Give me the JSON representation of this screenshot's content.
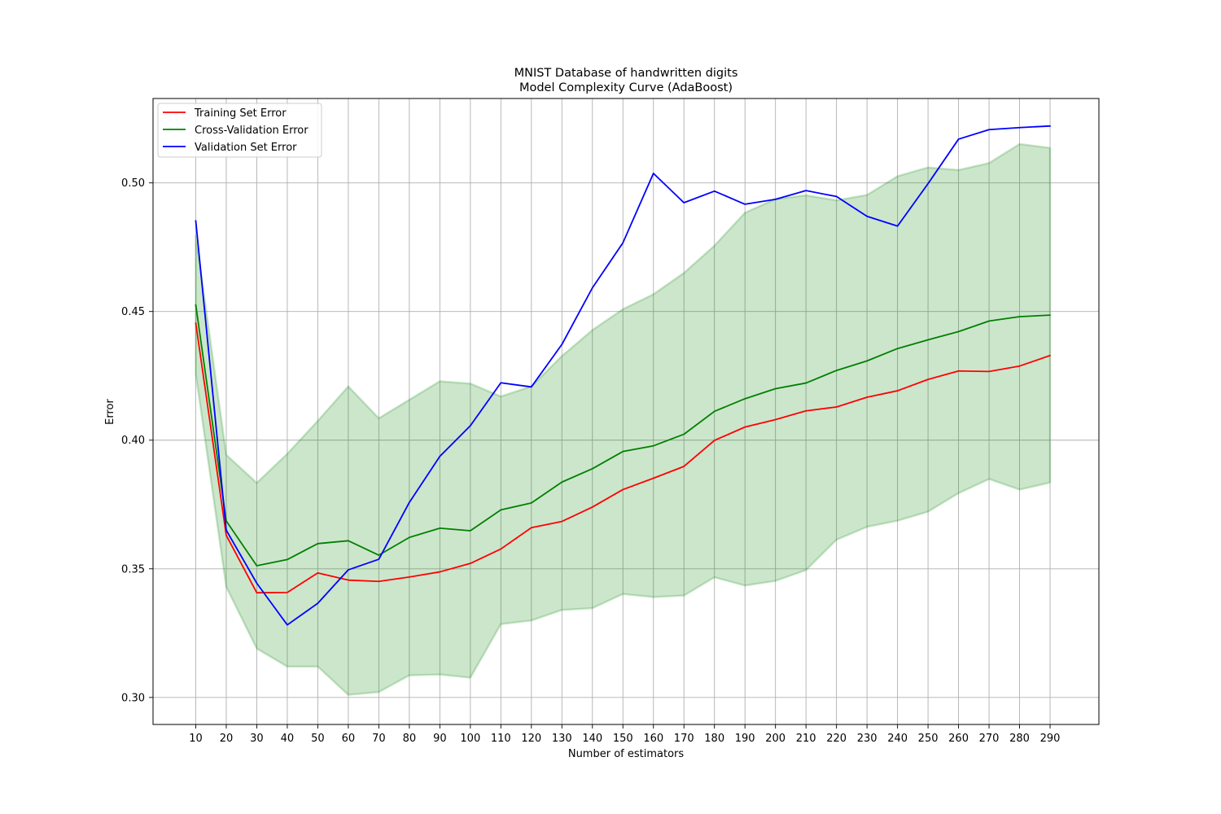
{
  "chart_data": {
    "type": "line",
    "title": "MNIST Database of handwritten digits",
    "subtitle": "Model Complexity Curve (AdaBoost)",
    "xlabel": "Number of estimators",
    "ylabel": "Error",
    "xlim": [
      -4.0,
      306.0
    ],
    "ylim": [
      0.2895,
      0.5328
    ],
    "grid": true,
    "legend_position": "upper-left",
    "x": [
      10,
      20,
      30,
      40,
      50,
      60,
      70,
      80,
      90,
      100,
      110,
      120,
      130,
      140,
      150,
      160,
      170,
      180,
      190,
      200,
      210,
      220,
      230,
      240,
      250,
      260,
      270,
      280,
      290
    ],
    "x_tick_labels": [
      "10",
      "20",
      "30",
      "40",
      "50",
      "60",
      "70",
      "80",
      "90",
      "100",
      "110",
      "120",
      "130",
      "140",
      "150",
      "160",
      "170",
      "180",
      "190",
      "200",
      "210",
      "220",
      "230",
      "240",
      "250",
      "260",
      "270",
      "280",
      "290"
    ],
    "y_ticks": [
      0.3,
      0.35,
      0.4,
      0.45,
      0.5
    ],
    "y_tick_labels": [
      "0.30",
      "0.35",
      "0.40",
      "0.45",
      "0.50"
    ],
    "series": [
      {
        "name": "Training Set Error",
        "color": "#ff0000",
        "values": [
          0.4455,
          0.363,
          0.3407,
          0.3408,
          0.3484,
          0.3456,
          0.3451,
          0.3468,
          0.3488,
          0.3521,
          0.3577,
          0.366,
          0.3684,
          0.374,
          0.3808,
          0.3852,
          0.3898,
          0.3999,
          0.4051,
          0.408,
          0.4114,
          0.4129,
          0.4167,
          0.4192,
          0.4236,
          0.4269,
          0.4267,
          0.4288,
          0.4329
        ]
      },
      {
        "name": "Cross-Validation Error",
        "color": "#008000",
        "values": [
          0.4526,
          0.3686,
          0.3512,
          0.3536,
          0.3598,
          0.3609,
          0.3553,
          0.3622,
          0.3658,
          0.3648,
          0.3729,
          0.3756,
          0.3837,
          0.3889,
          0.3956,
          0.3978,
          0.4023,
          0.4112,
          0.4161,
          0.42,
          0.4222,
          0.4271,
          0.4308,
          0.4356,
          0.439,
          0.4422,
          0.4463,
          0.448,
          0.4486
        ]
      },
      {
        "name": "Validation Set Error",
        "color": "#0000ff",
        "values": [
          0.4853,
          0.365,
          0.3444,
          0.3282,
          0.3366,
          0.3496,
          0.3537,
          0.3758,
          0.3937,
          0.4056,
          0.4223,
          0.4207,
          0.4372,
          0.4592,
          0.4767,
          0.5037,
          0.4923,
          0.4968,
          0.4917,
          0.4936,
          0.497,
          0.4947,
          0.487,
          0.4832,
          0.4997,
          0.517,
          0.5207,
          0.5215,
          0.5221
        ]
      }
    ],
    "band": {
      "color": "#008000",
      "upper": [
        0.4795,
        0.3943,
        0.3834,
        0.3947,
        0.4075,
        0.4209,
        0.4085,
        0.4157,
        0.4229,
        0.422,
        0.417,
        0.4209,
        0.4327,
        0.4428,
        0.4509,
        0.4567,
        0.465,
        0.4756,
        0.4884,
        0.4937,
        0.4952,
        0.4932,
        0.4953,
        0.5026,
        0.506,
        0.505,
        0.5077,
        0.5151,
        0.5136
      ],
      "lower": [
        0.4257,
        0.343,
        0.319,
        0.312,
        0.312,
        0.301,
        0.3021,
        0.3086,
        0.3089,
        0.3077,
        0.3285,
        0.3299,
        0.334,
        0.3347,
        0.3402,
        0.339,
        0.3396,
        0.3467,
        0.3435,
        0.3453,
        0.3495,
        0.3613,
        0.3663,
        0.3687,
        0.3722,
        0.3794,
        0.3849,
        0.3808,
        0.3835
      ]
    }
  }
}
